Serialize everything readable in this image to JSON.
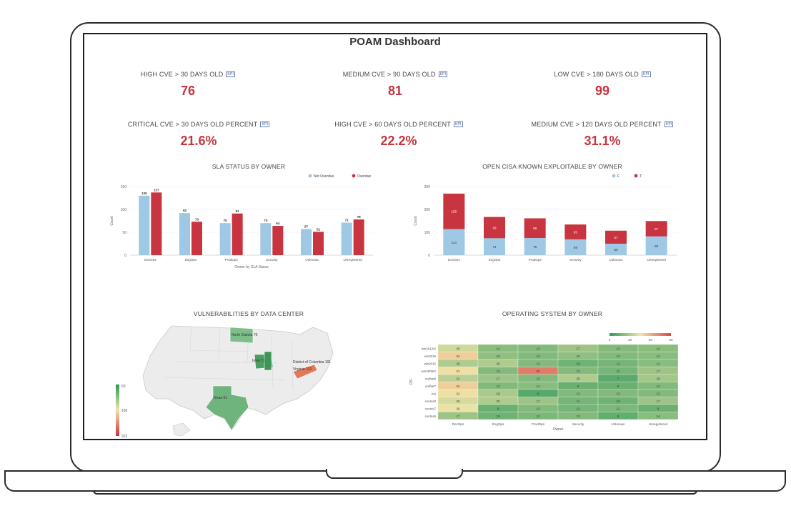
{
  "dashboard": {
    "title": "POAM Dashboard"
  },
  "kpis": [
    {
      "label": "HIGH CVE > 30 DAYS OLD",
      "badge": "KPI",
      "value": "76"
    },
    {
      "label": "MEDIUM CVE > 90 DAYS OLD",
      "badge": "KPI",
      "value": "81"
    },
    {
      "label": "LOW CVE > 180 DAYS OLD",
      "badge": "KPI",
      "value": "99"
    },
    {
      "label": "CRITICAL CVE > 30 DAYS OLD PERCENT",
      "badge": "KPI",
      "value": "21.6%"
    },
    {
      "label": "HIGH CVE > 60 DAYS OLD PERCENT",
      "badge": "KPI",
      "value": "22.2%"
    },
    {
      "label": "MEDIUM CVE > 120 DAYS OLD PERCENT",
      "badge": "KPI",
      "value": "31.1%"
    }
  ],
  "colors": {
    "accent_red": "#c8343f",
    "blue": "#9ec8e4",
    "heat_low": "#2e9a5a",
    "heat_mid": "#f1e4a8",
    "heat_high": "#d84a4a"
  },
  "chart_data": [
    {
      "type": "bar",
      "title": "SLA STATUS BY OWNER",
      "xlabel": "Owner by SLA Status",
      "ylabel": "Count",
      "ylim": [
        0,
        150
      ],
      "yticks": [
        0,
        50,
        100,
        150
      ],
      "categories": [
        "DevOps",
        "EngOps",
        "ProdOps",
        "Security",
        "Unknown",
        "Unregistered"
      ],
      "series": [
        {
          "name": "Not Overdue",
          "color": "#9ec8e4",
          "values": [
            130,
            92,
            70,
            70,
            57,
            71
          ]
        },
        {
          "name": "Overdue",
          "color": "#c8343f",
          "values": [
            137,
            73,
            91,
            64,
            51,
            78
          ]
        }
      ],
      "legend": "top-right"
    },
    {
      "type": "bar",
      "stacked": true,
      "title": "OPEN CISA KNOWN EXPLOITABLE BY OWNER",
      "xlabel": "",
      "ylabel": "Count",
      "ylim": [
        0,
        300
      ],
      "yticks": [
        0,
        100,
        200,
        300
      ],
      "categories": [
        "DevOps",
        "EngOps",
        "ProdOps",
        "Security",
        "Unknown",
        "Unregistered"
      ],
      "series": [
        {
          "name": "F",
          "color": "#9ec8e4",
          "values": [
            114,
            74,
            75,
            69,
            50,
            82
          ]
        },
        {
          "name": "T",
          "color": "#c8343f",
          "values": [
            155,
            93,
            86,
            65,
            57,
            67
          ]
        }
      ],
      "legend": "top-right"
    },
    {
      "type": "heatmap",
      "title": "OPERATING SYSTEM BY OWNER",
      "xlabel": "Owner",
      "ylabel": "OS",
      "x": [
        "DevOps",
        "EngOps",
        "ProdOps",
        "Security",
        "Unknown",
        "Unregistered"
      ],
      "y": [
        "win2012r2",
        "win2019",
        "win2016",
        "win2008r2",
        "redhat8",
        "redhat7",
        "n/a",
        "centos8",
        "centos7",
        "centos6"
      ],
      "values": [
        [
          25,
          14,
          13,
          17,
          13,
          14
        ],
        [
          34,
          15,
          13,
          15,
          13,
          14
        ],
        [
          20,
          20,
          13,
          10,
          11,
          14
        ],
        [
          31,
          13,
          50,
          13,
          11,
          17
        ],
        [
          22,
          17,
          13,
          20,
          7,
          18
        ],
        [
          34,
          13,
          14,
          9,
          9,
          13
        ],
        [
          31,
          19,
          6,
          13,
          13,
          13
        ],
        [
          26,
          20,
          17,
          11,
          10,
          17
        ],
        [
          29,
          9,
          13,
          11,
          12,
          9
        ],
        [
          17,
          10,
          12,
          13,
          8,
          14
        ]
      ],
      "colorscale_ticks": [
        0,
        20,
        40,
        60
      ]
    }
  ],
  "map": {
    "title": "VULNERABILITIES BY DATA CENTER",
    "legend_ticks": [
      "60",
      "150",
      "222"
    ],
    "labels": [
      "North Dakota 70",
      "Iowa 71",
      "District of Columbia 191",
      "Virginia 222",
      "Texas 61"
    ]
  }
}
